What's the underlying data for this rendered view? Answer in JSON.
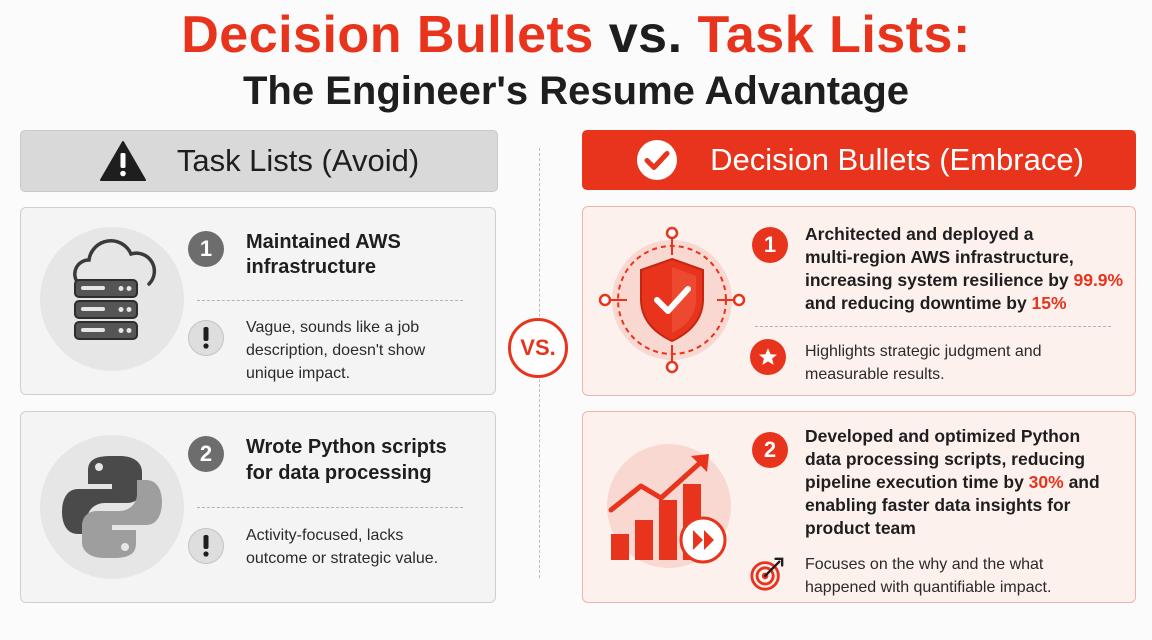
{
  "header": {
    "title_part1": "Decision Bullets",
    "title_part2": "vs.",
    "title_part3": "Task Lists:",
    "subtitle": "The Engineer's Resume Advantage"
  },
  "left": {
    "heading": "Task Lists (Avoid)",
    "icon": "warning-icon",
    "items": [
      {
        "number": "1",
        "icon": "cloud-server-icon",
        "bullet_lines": [
          "Maintained AWS",
          "infrastructure"
        ],
        "note_icon": "exclamation-icon",
        "note_lines": [
          "Vague, sounds like a job",
          "description, doesn't show",
          "unique impact."
        ]
      },
      {
        "number": "2",
        "icon": "python-logo-icon",
        "bullet_lines": [
          "Wrote Python scripts",
          "for data processing"
        ],
        "note_icon": "exclamation-icon",
        "note_lines": [
          "Activity-focused, lacks",
          "outcome or strategic value."
        ]
      }
    ]
  },
  "vs_label": "VS.",
  "right": {
    "heading": "Decision Bullets (Embrace)",
    "icon": "check-circle-icon",
    "items": [
      {
        "number": "1",
        "icon": "shield-network-icon",
        "bullet_lines": [
          "Architected and deployed a",
          "multi-region AWS infrastructure,",
          "increasing system resilience by ",
          "99.9%",
          "and reducing downtime by ",
          "15%"
        ],
        "note_icon": "star-icon",
        "note_lines": [
          "Highlights strategic judgment and",
          "measurable results."
        ]
      },
      {
        "number": "2",
        "icon": "growth-chart-icon",
        "bullet_lines": [
          "Developed and optimized Python",
          "data processing scripts, reducing",
          "pipeline execution time by ",
          "30%",
          " and",
          "enabling faster data insights for",
          "product team"
        ],
        "note_icon": "target-icon",
        "note_lines": [
          "Focuses on the why and the what",
          "happened with quantifiable impact."
        ]
      }
    ]
  },
  "colors": {
    "accent": "#e8341c",
    "dark": "#1e1e1e",
    "grey_header": "#d9d9d9"
  }
}
